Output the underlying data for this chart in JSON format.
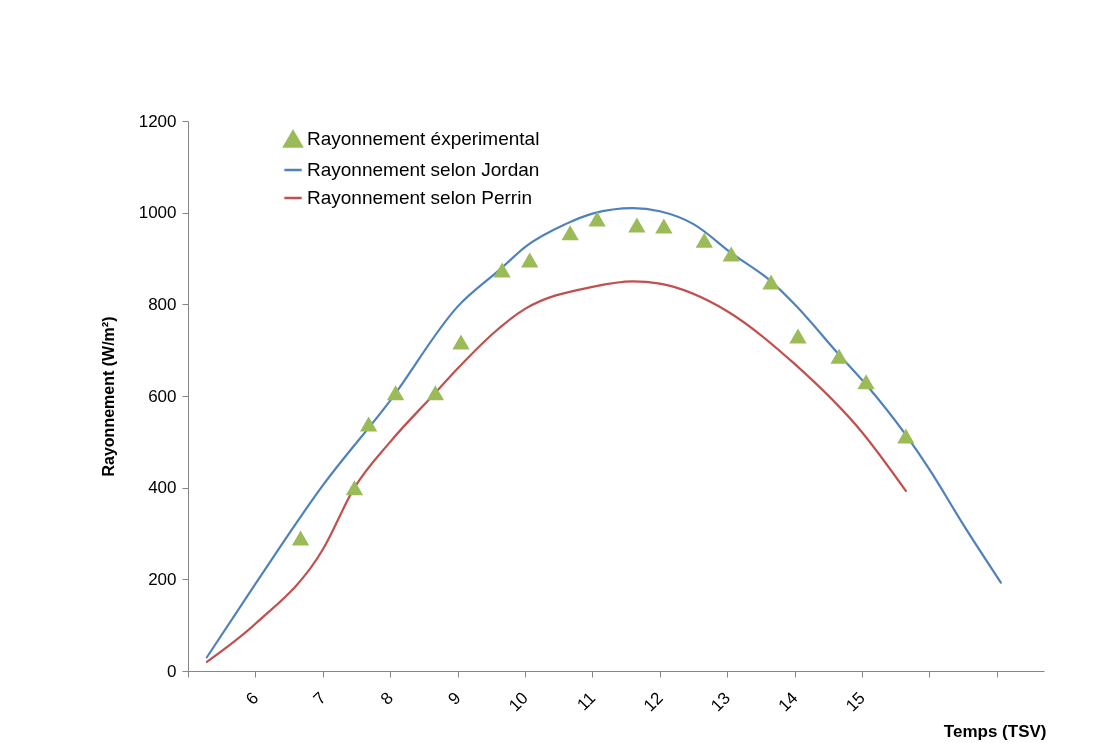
{
  "chart_data": {
    "type": "line",
    "xlabel": "Temps  (TSV)",
    "ylabel": "Rayonnement (W/m²)",
    "xlim": [
      5,
      17.7
    ],
    "xticks": [
      {
        "value": 5,
        "label": null
      },
      6,
      7,
      8,
      9,
      10,
      11,
      12,
      13,
      14,
      15,
      {
        "value": 16,
        "label": null
      },
      {
        "value": 17,
        "label": null
      }
    ],
    "ylim": [
      0,
      1200
    ],
    "yticks": [
      0,
      200,
      400,
      600,
      800,
      1000,
      1200
    ],
    "grid": false,
    "legend": "top left",
    "line_style": "solid",
    "series": [
      {
        "name": "Rayonnement éxperimental",
        "type": "scatter",
        "marker": "triangle",
        "color": "#9bbb59",
        "x": [
          6.67,
          7.47,
          7.68,
          8.08,
          8.67,
          9.05,
          9.66,
          10.07,
          10.67,
          11.07,
          11.66,
          12.06,
          12.66,
          13.06,
          13.65,
          14.05,
          14.66,
          15.06,
          15.65
        ],
        "values": [
          290,
          400,
          539,
          607,
          607,
          718,
          875,
          897,
          956,
          986,
          973,
          971,
          940,
          910,
          849,
          731,
          687,
          631,
          513
        ]
      },
      {
        "name": "Rayonnement selon Jordan",
        "color": "#4f81bd",
        "x": [
          5.28,
          6,
          7,
          8,
          9,
          9.66,
          10,
          10.6,
          11,
          11.6,
          12,
          12.5,
          13.06,
          13.65,
          14,
          14.66,
          15.06,
          15.65,
          16,
          16.5,
          17.06
        ],
        "values": [
          30,
          190,
          405,
          590,
          795,
          880,
          925,
          975,
          998,
          1010,
          1003,
          975,
          912,
          850,
          800,
          690,
          625,
          515,
          440,
          320,
          193
        ]
      },
      {
        "name": "Rayonnement selon Perrin",
        "color": "#c0504d",
        "x": [
          5.28,
          6,
          7,
          7.47,
          8,
          8.67,
          9,
          10,
          11,
          11.6,
          12,
          13,
          14,
          15,
          15.65
        ],
        "values": [
          20,
          103,
          265,
          400,
          500,
          607,
          660,
          790,
          838,
          850,
          845,
          785,
          670,
          521,
          393
        ]
      }
    ]
  }
}
